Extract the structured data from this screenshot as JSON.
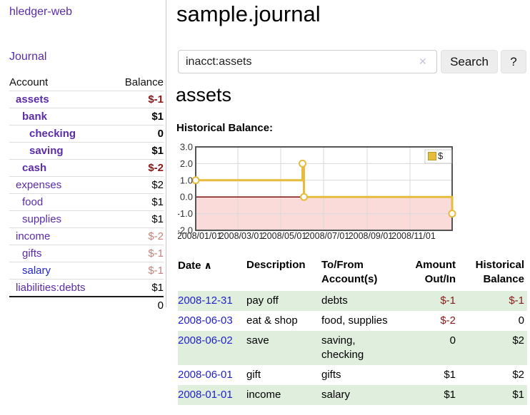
{
  "app": {
    "title": "hledger-web"
  },
  "sidebar": {
    "journal_link": "Journal",
    "accounts_header": {
      "account": "Account",
      "balance": "Balance"
    },
    "accounts": [
      {
        "label": "assets",
        "indent": 1,
        "bold": true,
        "balance": "$-1",
        "balance_class": "neg-strong"
      },
      {
        "label": "bank",
        "indent": 2,
        "bold": true,
        "balance": "$1",
        "balance_class": ""
      },
      {
        "label": "checking",
        "indent": 3,
        "bold": true,
        "balance": "0",
        "balance_class": ""
      },
      {
        "label": "saving",
        "indent": 3,
        "bold": true,
        "balance": "$1",
        "balance_class": ""
      },
      {
        "label": "cash",
        "indent": 2,
        "bold": true,
        "balance": "$-2",
        "balance_class": "neg-strong"
      },
      {
        "label": "expenses",
        "indent": 1,
        "bold": false,
        "balance": "$2",
        "balance_class": ""
      },
      {
        "label": "food",
        "indent": 2,
        "bold": false,
        "balance": "$1",
        "balance_class": ""
      },
      {
        "label": "supplies",
        "indent": 2,
        "bold": false,
        "balance": "$1",
        "balance_class": ""
      },
      {
        "label": "income",
        "indent": 1,
        "bold": false,
        "balance": "$-2",
        "balance_class": "neg-light"
      },
      {
        "label": "gifts",
        "indent": 2,
        "bold": false,
        "balance": "$-1",
        "balance_class": "neg-light"
      },
      {
        "label": "salary",
        "indent": 2,
        "bold": false,
        "balance": "$-1",
        "balance_class": "neg-light",
        "link_class": "blue"
      },
      {
        "label": "liabilities:debts",
        "indent": 1,
        "bold": false,
        "balance": "$1",
        "balance_class": ""
      }
    ],
    "total": "0"
  },
  "header": {
    "title": "sample.journal"
  },
  "search": {
    "value": "inacct:assets",
    "clear_icon": "✕",
    "button_label": "Search",
    "help_label": "?"
  },
  "section": {
    "heading": "assets",
    "chart_label": "Historical Balance:"
  },
  "chart_data": {
    "type": "line",
    "subtype": "step",
    "title": "Historical Balance:",
    "x_range": [
      "2008-01-01",
      "2008-12-31"
    ],
    "ylim": [
      -2,
      3
    ],
    "series": [
      {
        "name": "$",
        "color": "#e5bc3c",
        "points": [
          [
            "2008-01-01",
            1
          ],
          [
            "2008-06-01",
            2
          ],
          [
            "2008-06-03",
            0
          ],
          [
            "2008-12-31",
            -1
          ]
        ]
      }
    ],
    "y_ticks": [
      {
        "v": 3,
        "label": "3.0"
      },
      {
        "v": 2,
        "label": "2.0"
      },
      {
        "v": 1,
        "label": "1.0"
      },
      {
        "v": 0,
        "label": "0.0"
      },
      {
        "v": -1,
        "label": "-1.0"
      },
      {
        "v": -2,
        "label": "-2.0"
      }
    ],
    "x_ticks": [
      {
        "d": "2008-01-01",
        "label": "2008/01/01"
      },
      {
        "d": "2008-03-01",
        "label": "2008/03/01"
      },
      {
        "d": "2008-05-01",
        "label": "2008/05/01"
      },
      {
        "d": "2008-07-01",
        "label": "2008/07/01"
      },
      {
        "d": "2008-09-01",
        "label": "2008/09/01"
      },
      {
        "d": "2008-11-01",
        "label": "2008/11/01"
      }
    ],
    "legend": {
      "label": "$",
      "position": "top-right"
    },
    "grid_color": "#d9d9d9",
    "border_color": "#555555",
    "zero_line_color": "#7a0c0c",
    "negative_region_fill": "#fbdada",
    "marker": {
      "shape": "circle",
      "fill": "#ffffff"
    }
  },
  "register": {
    "sort_icon": "∧",
    "columns": [
      {
        "line1": "Date",
        "line2": "",
        "align": "left",
        "sorted": true
      },
      {
        "line1": "Description",
        "line2": "",
        "align": "left"
      },
      {
        "line1": "To/From",
        "line2": "Account(s)",
        "align": "left"
      },
      {
        "line1": "Amount",
        "line2": "Out/In",
        "align": "right"
      },
      {
        "line1": "Historical",
        "line2": "Balance",
        "align": "right"
      }
    ],
    "rows": [
      {
        "date": "2008-12-31",
        "description": "pay off",
        "accounts": "debts",
        "amount": "$-1",
        "amount_neg": true,
        "balance": "$-1",
        "balance_neg": true
      },
      {
        "date": "2008-06-03",
        "description": "eat & shop",
        "accounts": "food, supplies",
        "amount": "$-2",
        "amount_neg": true,
        "balance": "0",
        "balance_neg": false
      },
      {
        "date": "2008-06-02",
        "description": "save",
        "accounts": "saving, checking",
        "amount": "0",
        "amount_neg": false,
        "balance": "$2",
        "balance_neg": false
      },
      {
        "date": "2008-06-01",
        "description": "gift",
        "accounts": "gifts",
        "amount": "$1",
        "amount_neg": false,
        "balance": "$2",
        "balance_neg": false
      },
      {
        "date": "2008-01-01",
        "description": "income",
        "accounts": "salary",
        "amount": "$1",
        "amount_neg": false,
        "balance": "$1",
        "balance_neg": false
      }
    ]
  }
}
